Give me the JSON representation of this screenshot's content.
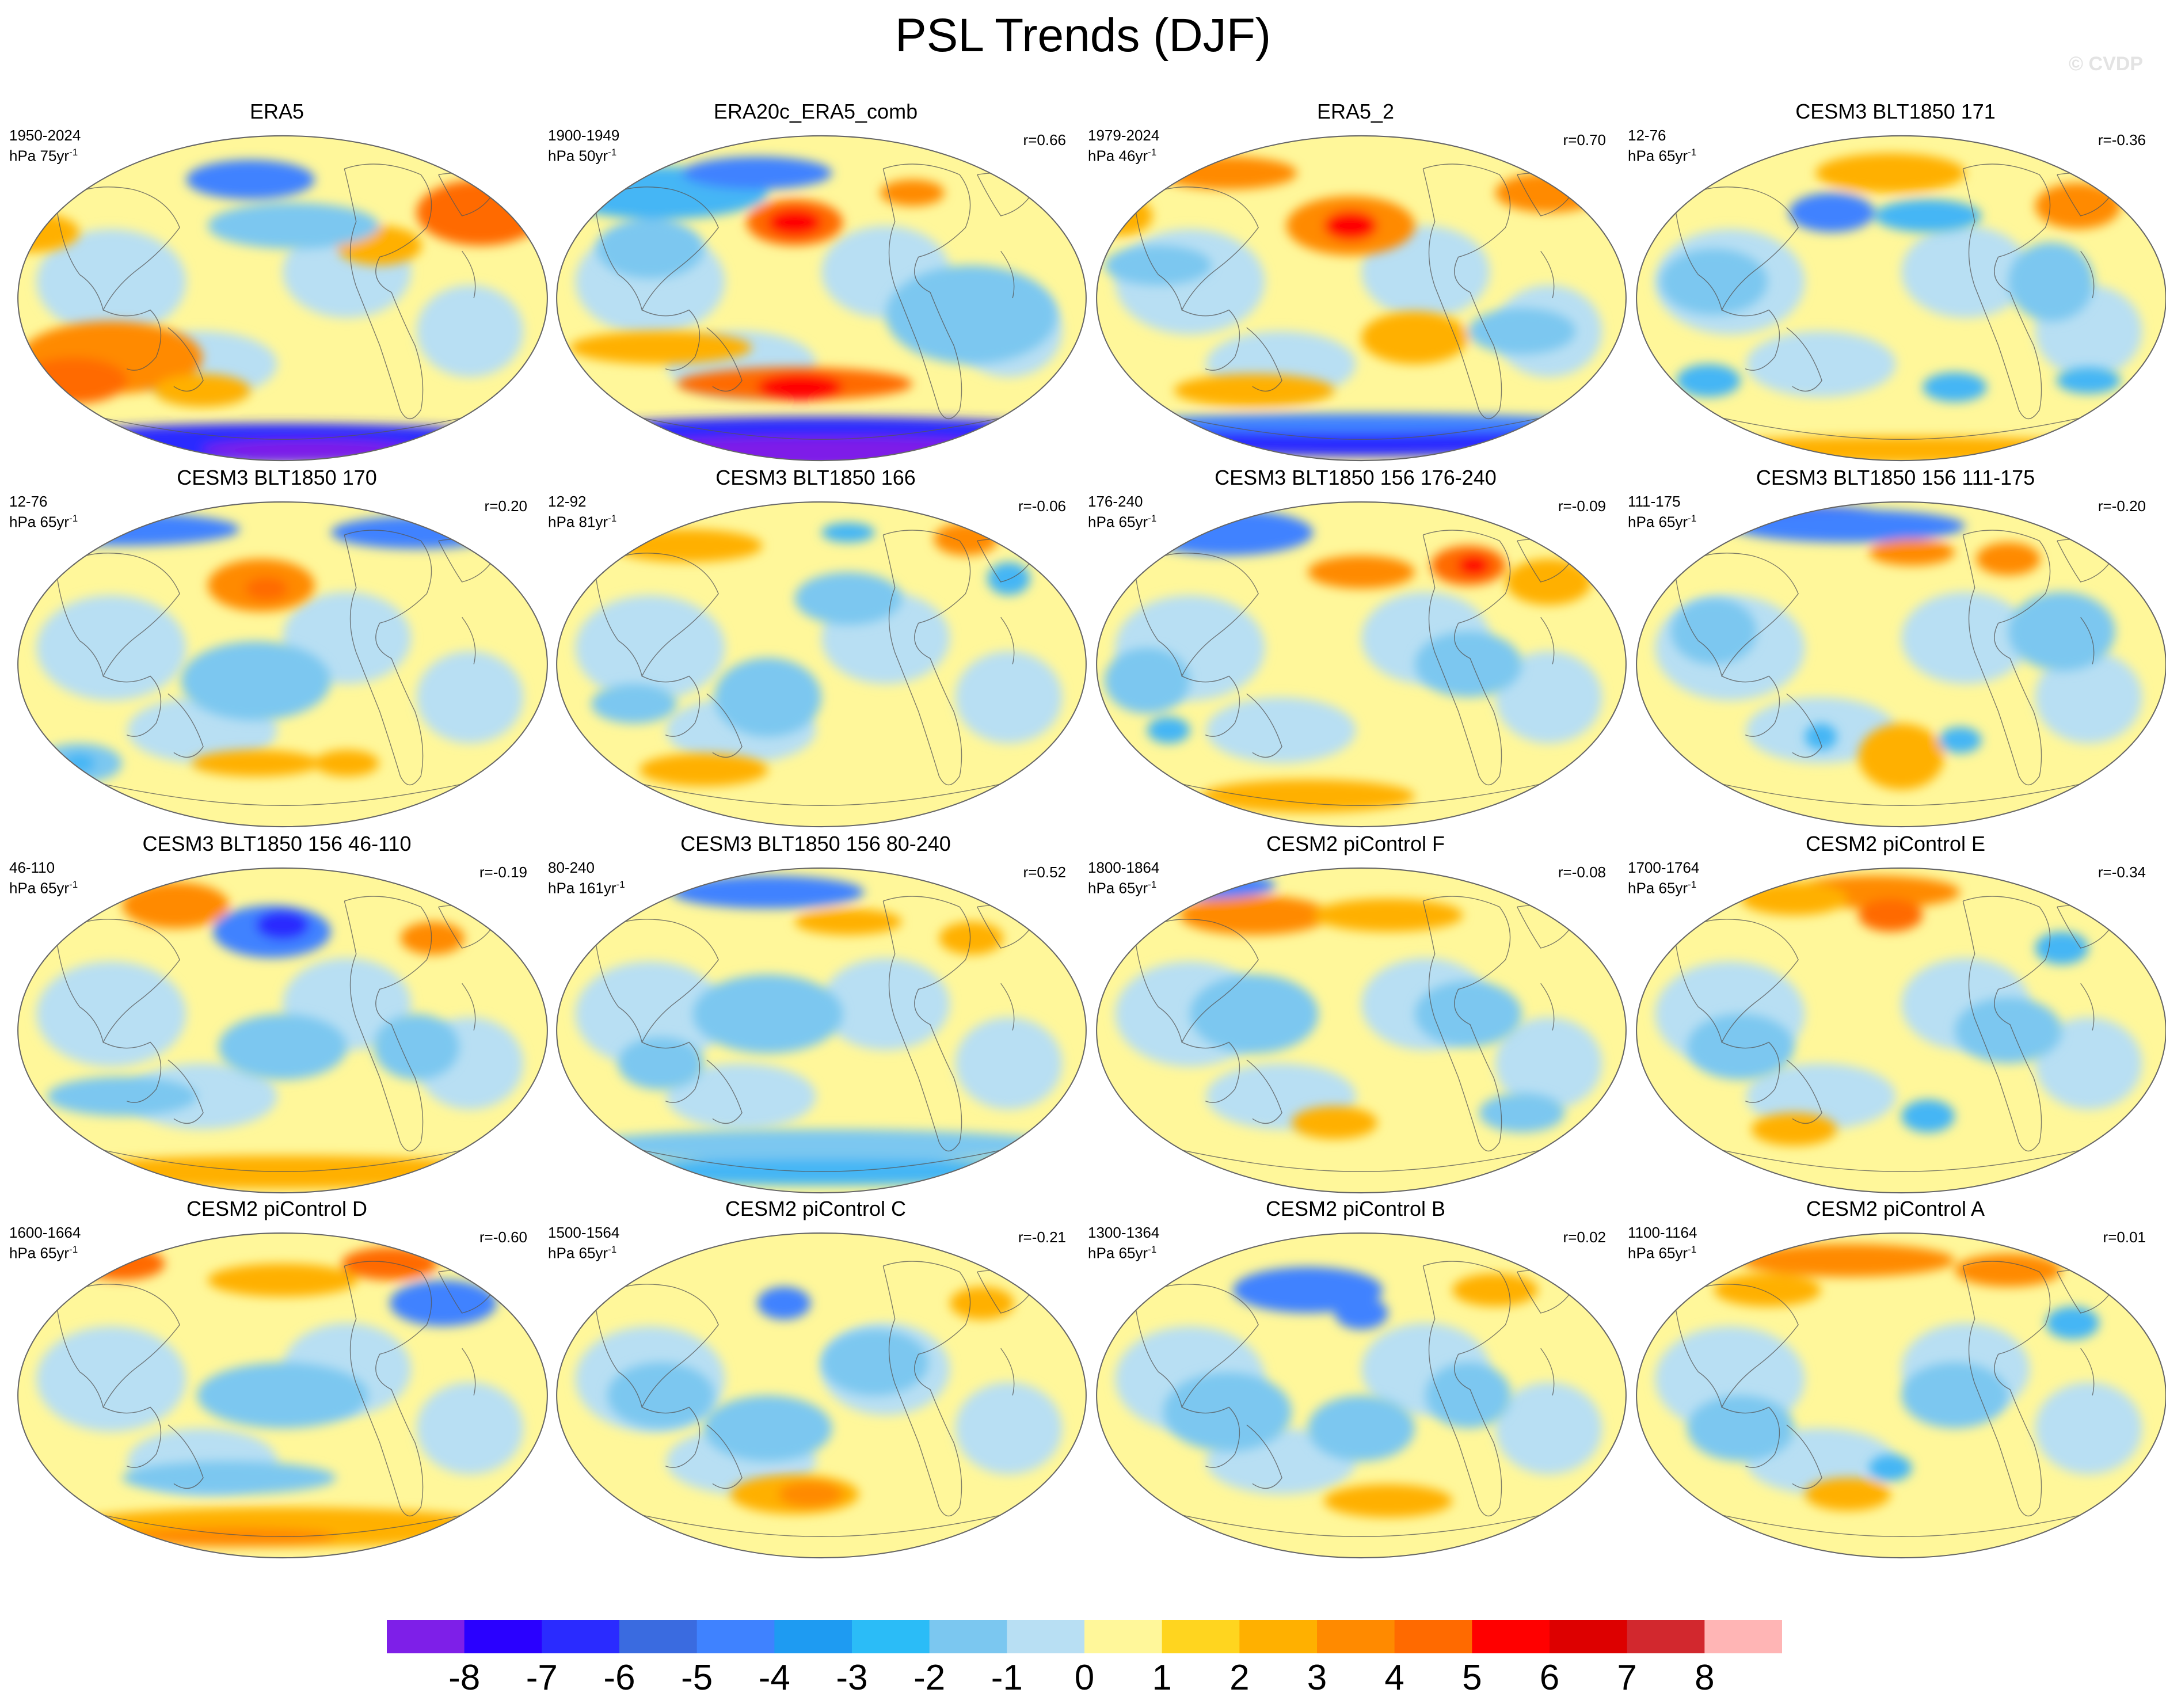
{
  "title": "PSL Trends (DJF)",
  "watermark": "© CVDP",
  "panels": [
    {
      "title": "ERA5",
      "period": "1950-2024",
      "units": "hPa 75yr",
      "units_exp": "-1",
      "corr": "",
      "blobs": [
        [
          "#ff8a00",
          0.18,
          0.68,
          0.17,
          0.11
        ],
        [
          "#ff6a00",
          0.11,
          0.75,
          0.1,
          0.07
        ],
        [
          "#ff6a00",
          0.87,
          0.24,
          0.12,
          0.1
        ],
        [
          "#ffb000",
          0.68,
          0.34,
          0.08,
          0.06
        ],
        [
          "#ffb000",
          0.35,
          0.78,
          0.09,
          0.05
        ],
        [
          "#ffb000",
          0.03,
          0.3,
          0.09,
          0.06
        ],
        [
          "#3f82ff",
          0.44,
          0.14,
          0.12,
          0.06
        ],
        [
          "#7bc7f0",
          0.52,
          0.28,
          0.16,
          0.07
        ],
        [
          "#2a2bff",
          0.5,
          0.94,
          0.5,
          0.06
        ],
        [
          "#7e1fe8",
          0.55,
          0.96,
          0.2,
          0.03
        ]
      ]
    },
    {
      "title": "ERA20c_ERA5_comb",
      "period": "1900-1949",
      "units": "hPa 50yr",
      "units_exp": "-1",
      "corr": "r=0.66",
      "blobs": [
        [
          "#ff6a00",
          0.45,
          0.27,
          0.09,
          0.07
        ],
        [
          "#ff0000",
          0.45,
          0.27,
          0.05,
          0.04
        ],
        [
          "#ff6a00",
          0.45,
          0.76,
          0.22,
          0.05
        ],
        [
          "#ff0000",
          0.46,
          0.77,
          0.08,
          0.04
        ],
        [
          "#ff8a00",
          0.67,
          0.18,
          0.06,
          0.04
        ],
        [
          "#ffb000",
          0.2,
          0.65,
          0.17,
          0.05
        ],
        [
          "#45b6f5",
          0.2,
          0.18,
          0.2,
          0.08
        ],
        [
          "#3f82ff",
          0.38,
          0.12,
          0.14,
          0.05
        ],
        [
          "#7bc7f0",
          0.78,
          0.55,
          0.16,
          0.15
        ],
        [
          "#7bc7f0",
          0.18,
          0.35,
          0.1,
          0.09
        ],
        [
          "#2a2bff",
          0.5,
          0.91,
          0.5,
          0.05
        ],
        [
          "#7e1fe8",
          0.5,
          0.97,
          0.45,
          0.05
        ]
      ]
    },
    {
      "title": "ERA5_2",
      "period": "1979-2024",
      "units": "hPa 46yr",
      "units_exp": "-1",
      "corr": "r=0.70",
      "blobs": [
        [
          "#ff8a00",
          0.48,
          0.28,
          0.12,
          0.09
        ],
        [
          "#ff0000",
          0.48,
          0.28,
          0.05,
          0.045
        ],
        [
          "#ff8a00",
          0.25,
          0.12,
          0.13,
          0.05
        ],
        [
          "#ff8a00",
          0.85,
          0.18,
          0.1,
          0.06
        ],
        [
          "#ffb000",
          0.6,
          0.62,
          0.1,
          0.08
        ],
        [
          "#ffb000",
          0.3,
          0.78,
          0.15,
          0.05
        ],
        [
          "#ffb000",
          0.05,
          0.25,
          0.06,
          0.06
        ],
        [
          "#7bc7f0",
          0.12,
          0.4,
          0.1,
          0.06
        ],
        [
          "#7bc7f0",
          0.8,
          0.6,
          0.1,
          0.07
        ],
        [
          "#2a2bff",
          0.5,
          0.93,
          0.48,
          0.05
        ],
        [
          "#3f82ff",
          0.5,
          0.88,
          0.46,
          0.03
        ]
      ]
    },
    {
      "title": "CESM3 BLT1850 171",
      "period": "12-76",
      "units": "hPa 65yr",
      "units_exp": "-1",
      "corr": "r=-0.36",
      "blobs": [
        [
          "#ff8a00",
          0.83,
          0.22,
          0.08,
          0.07
        ],
        [
          "#ffb000",
          0.48,
          0.12,
          0.14,
          0.06
        ],
        [
          "#3f82ff",
          0.37,
          0.24,
          0.08,
          0.06
        ],
        [
          "#45b6f5",
          0.55,
          0.25,
          0.1,
          0.05
        ],
        [
          "#45b6f5",
          0.14,
          0.75,
          0.06,
          0.05
        ],
        [
          "#45b6f5",
          0.6,
          0.77,
          0.06,
          0.045
        ],
        [
          "#45b6f5",
          0.85,
          0.75,
          0.06,
          0.04
        ],
        [
          "#ffb000",
          0.5,
          0.96,
          0.46,
          0.04
        ],
        [
          "#7bc7f0",
          0.15,
          0.45,
          0.1,
          0.1
        ],
        [
          "#7bc7f0",
          0.78,
          0.45,
          0.08,
          0.12
        ]
      ]
    },
    {
      "title": "CESM3 BLT1850 170",
      "period": "12-76",
      "units": "hPa 65yr",
      "units_exp": "-1",
      "corr": "r=0.20",
      "blobs": [
        [
          "#ff8a00",
          0.46,
          0.26,
          0.1,
          0.08
        ],
        [
          "#ff6a00",
          0.47,
          0.27,
          0.04,
          0.035
        ],
        [
          "#3f82ff",
          0.2,
          0.09,
          0.22,
          0.05
        ],
        [
          "#3f82ff",
          0.75,
          0.1,
          0.16,
          0.05
        ],
        [
          "#ffb000",
          0.45,
          0.8,
          0.12,
          0.04
        ],
        [
          "#ffb000",
          0.62,
          0.8,
          0.06,
          0.04
        ],
        [
          "#7bc7f0",
          0.45,
          0.55,
          0.14,
          0.12
        ],
        [
          "#7bc7f0",
          0.12,
          0.8,
          0.08,
          0.06
        ],
        [
          "#45b6f5",
          0.12,
          0.8,
          0.03,
          0.03
        ]
      ]
    },
    {
      "title": "CESM3 BLT1850 166",
      "period": "12-92",
      "units": "hPa 81yr",
      "units_exp": "-1",
      "corr": "r=-0.06",
      "blobs": [
        [
          "#ff8a00",
          0.77,
          0.12,
          0.06,
          0.05
        ],
        [
          "#ffb000",
          0.25,
          0.14,
          0.14,
          0.05
        ],
        [
          "#ffb000",
          0.28,
          0.82,
          0.12,
          0.05
        ],
        [
          "#45b6f5",
          0.85,
          0.24,
          0.04,
          0.05
        ],
        [
          "#7bc7f0",
          0.15,
          0.62,
          0.08,
          0.06
        ],
        [
          "#7bc7f0",
          0.55,
          0.3,
          0.1,
          0.08
        ],
        [
          "#7bc7f0",
          0.4,
          0.6,
          0.1,
          0.12
        ],
        [
          "#45b6f5",
          0.55,
          0.1,
          0.05,
          0.03
        ]
      ]
    },
    {
      "title": "CESM3 BLT1850 156 176-240",
      "period": "176-240",
      "units": "hPa 65yr",
      "units_exp": "-1",
      "corr": "r=-0.09",
      "blobs": [
        [
          "#3f82ff",
          0.25,
          0.1,
          0.16,
          0.07
        ],
        [
          "#ff8a00",
          0.5,
          0.22,
          0.1,
          0.05
        ],
        [
          "#ff6a00",
          0.7,
          0.2,
          0.07,
          0.06
        ],
        [
          "#ff0000",
          0.71,
          0.2,
          0.03,
          0.03
        ],
        [
          "#ffb000",
          0.85,
          0.25,
          0.08,
          0.07
        ],
        [
          "#7bc7f0",
          0.1,
          0.55,
          0.08,
          0.1
        ],
        [
          "#45b6f5",
          0.14,
          0.7,
          0.04,
          0.04
        ],
        [
          "#ffb000",
          0.4,
          0.9,
          0.2,
          0.05
        ],
        [
          "#7bc7f0",
          0.7,
          0.5,
          0.1,
          0.1
        ]
      ]
    },
    {
      "title": "CESM3 BLT1850 156 111-175",
      "period": "111-175",
      "units": "hPa 65yr",
      "units_exp": "-1",
      "corr": "r=-0.20",
      "blobs": [
        [
          "#2a2bff",
          0.34,
          0.06,
          0.16,
          0.04
        ],
        [
          "#3f82ff",
          0.4,
          0.08,
          0.22,
          0.05
        ],
        [
          "#ff8a00",
          0.52,
          0.16,
          0.08,
          0.04
        ],
        [
          "#ff8a00",
          0.7,
          0.18,
          0.06,
          0.05
        ],
        [
          "#ffb000",
          0.5,
          0.78,
          0.08,
          0.1
        ],
        [
          "#45b6f5",
          0.61,
          0.73,
          0.04,
          0.04
        ],
        [
          "#45b6f5",
          0.35,
          0.72,
          0.03,
          0.04
        ],
        [
          "#7bc7f0",
          0.8,
          0.4,
          0.1,
          0.12
        ],
        [
          "#7bc7f0",
          0.15,
          0.4,
          0.08,
          0.1
        ]
      ]
    },
    {
      "title": "CESM3 BLT1850 156 46-110",
      "period": "46-110",
      "units": "hPa 65yr",
      "units_exp": "-1",
      "corr": "r=-0.19",
      "blobs": [
        [
          "#ff8a00",
          0.3,
          0.12,
          0.1,
          0.07
        ],
        [
          "#3f82ff",
          0.48,
          0.2,
          0.11,
          0.08
        ],
        [
          "#2a2bff",
          0.5,
          0.18,
          0.05,
          0.045
        ],
        [
          "#ff8a00",
          0.78,
          0.22,
          0.06,
          0.05
        ],
        [
          "#ffb000",
          0.5,
          0.93,
          0.45,
          0.05
        ],
        [
          "#7bc7f0",
          0.2,
          0.7,
          0.14,
          0.06
        ],
        [
          "#7bc7f0",
          0.5,
          0.55,
          0.12,
          0.1
        ],
        [
          "#7bc7f0",
          0.75,
          0.55,
          0.08,
          0.1
        ]
      ]
    },
    {
      "title": "CESM3 BLT1850 156 80-240",
      "period": "80-240",
      "units": "hPa 161yr",
      "units_exp": "-1",
      "corr": "r=0.52",
      "blobs": [
        [
          "#3f82ff",
          0.4,
          0.08,
          0.18,
          0.05
        ],
        [
          "#ffb000",
          0.55,
          0.17,
          0.1,
          0.04
        ],
        [
          "#ffb000",
          0.78,
          0.22,
          0.06,
          0.05
        ],
        [
          "#7bc7f0",
          0.5,
          0.85,
          0.46,
          0.05
        ],
        [
          "#45b6f5",
          0.5,
          0.93,
          0.46,
          0.04
        ],
        [
          "#7bc7f0",
          0.4,
          0.45,
          0.14,
          0.12
        ],
        [
          "#7bc7f0",
          0.2,
          0.6,
          0.08,
          0.08
        ]
      ]
    },
    {
      "title": "CESM2 piControl F",
      "period": "1800-1864",
      "units": "hPa 65yr",
      "units_exp": "-1",
      "corr": "r=-0.08",
      "blobs": [
        [
          "#ff8a00",
          0.3,
          0.15,
          0.14,
          0.06
        ],
        [
          "#ffb000",
          0.55,
          0.15,
          0.14,
          0.05
        ],
        [
          "#3f82ff",
          0.2,
          0.06,
          0.14,
          0.04
        ],
        [
          "#7bc7f0",
          0.3,
          0.45,
          0.12,
          0.12
        ],
        [
          "#7bc7f0",
          0.7,
          0.45,
          0.1,
          0.1
        ],
        [
          "#ffb000",
          0.45,
          0.78,
          0.08,
          0.05
        ],
        [
          "#7bc7f0",
          0.8,
          0.75,
          0.08,
          0.06
        ]
      ]
    },
    {
      "title": "CESM2 piControl E",
      "period": "1700-1764",
      "units": "hPa 65yr",
      "units_exp": "-1",
      "corr": "r=-0.34",
      "blobs": [
        [
          "#ff8a00",
          0.45,
          0.08,
          0.16,
          0.05
        ],
        [
          "#ff6a00",
          0.48,
          0.15,
          0.06,
          0.05
        ],
        [
          "#ffb000",
          0.3,
          0.1,
          0.1,
          0.05
        ],
        [
          "#45b6f5",
          0.8,
          0.25,
          0.05,
          0.05
        ],
        [
          "#45b6f5",
          0.55,
          0.76,
          0.05,
          0.05
        ],
        [
          "#7bc7f0",
          0.2,
          0.55,
          0.1,
          0.1
        ],
        [
          "#7bc7f0",
          0.7,
          0.5,
          0.1,
          0.1
        ],
        [
          "#ffb000",
          0.3,
          0.8,
          0.08,
          0.05
        ]
      ]
    },
    {
      "title": "CESM2 piControl D",
      "period": "1600-1664",
      "units": "hPa 65yr",
      "units_exp": "-1",
      "corr": "r=-0.60",
      "blobs": [
        [
          "#ff6a00",
          0.2,
          0.1,
          0.08,
          0.05
        ],
        [
          "#ff6a00",
          0.7,
          0.1,
          0.09,
          0.05
        ],
        [
          "#3f82ff",
          0.8,
          0.22,
          0.1,
          0.07
        ],
        [
          "#ffb000",
          0.5,
          0.15,
          0.14,
          0.05
        ],
        [
          "#ffb000",
          0.5,
          0.9,
          0.42,
          0.06
        ],
        [
          "#ff8a00",
          0.4,
          0.93,
          0.2,
          0.03
        ],
        [
          "#7bc7f0",
          0.4,
          0.75,
          0.2,
          0.05
        ],
        [
          "#7bc7f0",
          0.5,
          0.5,
          0.16,
          0.1
        ]
      ]
    },
    {
      "title": "CESM2 piControl C",
      "period": "1500-1564",
      "units": "hPa 65yr",
      "units_exp": "-1",
      "corr": "r=-0.21",
      "blobs": [
        [
          "#ffb000",
          0.45,
          0.8,
          0.12,
          0.06
        ],
        [
          "#ff8a00",
          0.48,
          0.8,
          0.06,
          0.04
        ],
        [
          "#ffb000",
          0.8,
          0.22,
          0.06,
          0.05
        ],
        [
          "#3f82ff",
          0.43,
          0.22,
          0.05,
          0.05
        ],
        [
          "#7bc7f0",
          0.2,
          0.5,
          0.1,
          0.1
        ],
        [
          "#7bc7f0",
          0.6,
          0.4,
          0.1,
          0.1
        ],
        [
          "#7bc7f0",
          0.4,
          0.6,
          0.12,
          0.1
        ]
      ]
    },
    {
      "title": "CESM2 piControl B",
      "period": "1300-1364",
      "units": "hPa 65yr",
      "units_exp": "-1",
      "corr": "r=0.02",
      "blobs": [
        [
          "#3f82ff",
          0.4,
          0.18,
          0.14,
          0.07
        ],
        [
          "#3f82ff",
          0.5,
          0.25,
          0.05,
          0.05
        ],
        [
          "#ffb000",
          0.55,
          0.82,
          0.12,
          0.05
        ],
        [
          "#ffb000",
          0.75,
          0.18,
          0.08,
          0.05
        ],
        [
          "#7bc7f0",
          0.25,
          0.55,
          0.12,
          0.12
        ],
        [
          "#7bc7f0",
          0.7,
          0.5,
          0.08,
          0.1
        ],
        [
          "#7bc7f0",
          0.5,
          0.6,
          0.1,
          0.1
        ]
      ]
    },
    {
      "title": "CESM2 piControl A",
      "period": "1100-1164",
      "units": "hPa 65yr",
      "units_exp": "-1",
      "corr": "r=0.01",
      "blobs": [
        [
          "#ff8a00",
          0.4,
          0.09,
          0.2,
          0.05
        ],
        [
          "#ff8a00",
          0.7,
          0.12,
          0.1,
          0.05
        ],
        [
          "#ffb000",
          0.25,
          0.18,
          0.1,
          0.05
        ],
        [
          "#45b6f5",
          0.82,
          0.28,
          0.05,
          0.05
        ],
        [
          "#45b6f5",
          0.48,
          0.72,
          0.04,
          0.04
        ],
        [
          "#7bc7f0",
          0.2,
          0.6,
          0.1,
          0.1
        ],
        [
          "#7bc7f0",
          0.6,
          0.5,
          0.1,
          0.1
        ],
        [
          "#ffb000",
          0.4,
          0.8,
          0.08,
          0.05
        ]
      ]
    }
  ],
  "colorbar": {
    "colors": [
      "#7e1fe8",
      "#2a00ff",
      "#2a2bff",
      "#3a6be0",
      "#3f82ff",
      "#1e9bf2",
      "#2bbcf7",
      "#7bc7f0",
      "#b8dff3",
      "#fff79a",
      "#ffd51f",
      "#ffb000",
      "#ff8a00",
      "#ff6a00",
      "#ff0000",
      "#dd0000",
      "#d2282e",
      "#ffb5b5"
    ],
    "ticks": [
      "-8",
      "-7",
      "-6",
      "-5",
      "-4",
      "-3",
      "-2",
      "-1",
      "0",
      "1",
      "2",
      "3",
      "4",
      "5",
      "6",
      "7",
      "8"
    ]
  }
}
